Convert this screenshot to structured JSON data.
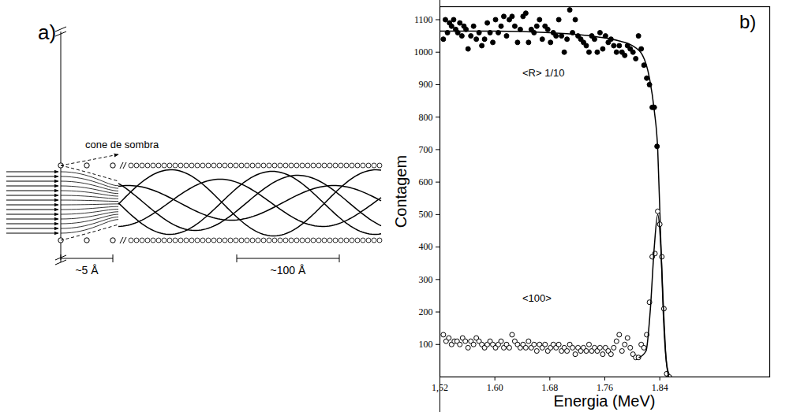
{
  "chart_data": {
    "type": "scatter",
    "panel_label": "b)",
    "xlabel": "Energia (MeV)",
    "ylabel": "Contagem",
    "xlim": [
      1.52,
      2.0
    ],
    "xticks": [
      {
        "value": 1.52,
        "label": "1,52"
      },
      {
        "value": 1.6,
        "label": "1.60"
      },
      {
        "value": 1.68,
        "label": "1.68"
      },
      {
        "value": 1.76,
        "label": "1.76"
      },
      {
        "value": 1.84,
        "label": "1.84"
      }
    ],
    "ylim": [
      0,
      1140
    ],
    "yticks": [
      100,
      200,
      300,
      400,
      500,
      600,
      700,
      800,
      900,
      1000,
      1100
    ],
    "grid": false,
    "series": [
      {
        "name": "<R> 1/10",
        "color": "#000000",
        "marker": "filled circle",
        "x": [
          1.525,
          1.528,
          1.531,
          1.534,
          1.537,
          1.54,
          1.543,
          1.546,
          1.549,
          1.552,
          1.555,
          1.558,
          1.561,
          1.565,
          1.569,
          1.573,
          1.577,
          1.581,
          1.585,
          1.589,
          1.593,
          1.597,
          1.601,
          1.605,
          1.609,
          1.613,
          1.617,
          1.621,
          1.625,
          1.629,
          1.633,
          1.637,
          1.641,
          1.645,
          1.649,
          1.653,
          1.657,
          1.661,
          1.665,
          1.669,
          1.673,
          1.677,
          1.681,
          1.685,
          1.689,
          1.693,
          1.697,
          1.701,
          1.705,
          1.709,
          1.713,
          1.717,
          1.721,
          1.725,
          1.729,
          1.733,
          1.737,
          1.741,
          1.745,
          1.749,
          1.753,
          1.757,
          1.761,
          1.765,
          1.769,
          1.773,
          1.777,
          1.781,
          1.785,
          1.789,
          1.793,
          1.797,
          1.801,
          1.805,
          1.809,
          1.813,
          1.817,
          1.821,
          1.825,
          1.829,
          1.832,
          1.836
        ],
        "values": [
          1040,
          1100,
          1060,
          1090,
          1080,
          1100,
          1070,
          1060,
          1090,
          1050,
          1080,
          1070,
          1010,
          1050,
          1080,
          1040,
          1060,
          1020,
          1040,
          1090,
          1060,
          1030,
          1100,
          1060,
          1080,
          1110,
          1050,
          1100,
          1110,
          1080,
          1030,
          1070,
          1110,
          1120,
          1030,
          1070,
          1060,
          1080,
          1100,
          1040,
          1080,
          1070,
          1030,
          1060,
          1050,
          1100,
          1050,
          1000,
          1040,
          1130,
          1060,
          1100,
          1050,
          1040,
          1030,
          1020,
          1000,
          1050,
          1040,
          1000,
          1060,
          1010,
          1050,
          1030,
          1040,
          1020,
          1000,
          1020,
          1000,
          990,
          1020,
          1010,
          1000,
          980,
          1050,
          1010,
          960,
          920,
          900,
          830,
          830,
          710
        ],
        "fit": {
          "x": [
            1.52,
            1.6,
            1.68,
            1.74,
            1.78,
            1.8,
            1.815,
            1.825,
            1.832,
            1.837,
            1.841,
            1.845,
            1.85,
            1.855
          ],
          "values": [
            1065,
            1065,
            1060,
            1050,
            1035,
            1020,
            990,
            920,
            820,
            700,
            450,
            200,
            40,
            0
          ]
        }
      },
      {
        "name": "<100>",
        "color": "#000000",
        "marker": "open circle",
        "x": [
          1.525,
          1.529,
          1.533,
          1.537,
          1.541,
          1.545,
          1.549,
          1.553,
          1.557,
          1.561,
          1.565,
          1.569,
          1.573,
          1.577,
          1.581,
          1.585,
          1.589,
          1.593,
          1.597,
          1.601,
          1.605,
          1.609,
          1.613,
          1.617,
          1.621,
          1.625,
          1.629,
          1.633,
          1.637,
          1.641,
          1.645,
          1.649,
          1.653,
          1.657,
          1.661,
          1.665,
          1.669,
          1.673,
          1.677,
          1.681,
          1.685,
          1.689,
          1.693,
          1.697,
          1.701,
          1.705,
          1.709,
          1.713,
          1.717,
          1.721,
          1.725,
          1.729,
          1.733,
          1.737,
          1.741,
          1.745,
          1.749,
          1.753,
          1.757,
          1.761,
          1.765,
          1.769,
          1.773,
          1.777,
          1.781,
          1.785,
          1.789,
          1.793,
          1.797,
          1.801,
          1.805,
          1.809,
          1.813,
          1.817,
          1.821,
          1.825,
          1.829,
          1.833,
          1.837,
          1.84,
          1.843,
          1.846,
          1.85,
          1.854
        ],
        "values": [
          130,
          110,
          120,
          100,
          110,
          110,
          100,
          120,
          110,
          90,
          110,
          100,
          120,
          110,
          100,
          90,
          100,
          110,
          100,
          90,
          100,
          110,
          90,
          100,
          90,
          130,
          110,
          100,
          90,
          100,
          90,
          110,
          90,
          100,
          80,
          100,
          90,
          100,
          80,
          90,
          100,
          90,
          100,
          80,
          90,
          80,
          100,
          90,
          70,
          90,
          80,
          90,
          80,
          100,
          80,
          90,
          80,
          90,
          70,
          90,
          80,
          70,
          90,
          110,
          130,
          80,
          100,
          120,
          90,
          70,
          60,
          60,
          100,
          90,
          130,
          230,
          370,
          380,
          510,
          470,
          370,
          210,
          10,
          0
        ],
        "fit": {
          "x": [
            1.81,
            1.82,
            1.826,
            1.832,
            1.837,
            1.841,
            1.845,
            1.849,
            1.853
          ],
          "values": [
            60,
            80,
            200,
            400,
            500,
            420,
            230,
            60,
            0
          ]
        }
      }
    ]
  },
  "diagram": {
    "panel_label": "a)",
    "shadow_cone_label": "cone de sombra",
    "surface_spacing_label": "~5 Å",
    "oscillation_length_label": "~100 Å"
  }
}
